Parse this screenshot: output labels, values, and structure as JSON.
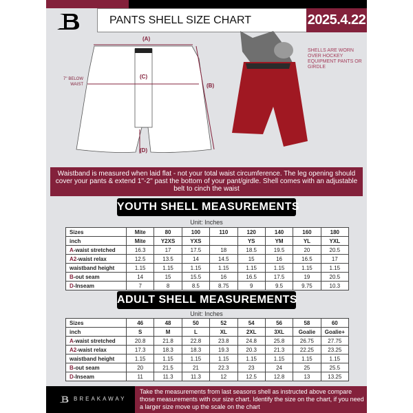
{
  "header": {
    "title": "PANTS SHELL SIZE CHART",
    "date": "2025.4.22"
  },
  "diagram": {
    "labels": {
      "a": "(A)",
      "b": "(B)",
      "c": "(C)",
      "d": "(D)",
      "c_note": "7'' BELOW WAIST"
    },
    "note": "SHELLS ARE WORN OVER HOCKEY EQUIPMENT PANTS OR GIRDLE"
  },
  "info_band": "Waistband is measured when laid flat - not your total waist circumference. The leg opening should cover your pants & extend 1''-2'' past the bottom of your pant/girdle. Shell comes with an adjustable belt to cinch the waist",
  "colors": {
    "accent": "#83213b",
    "dark": "#000000",
    "background": "#e1e2e5"
  },
  "youth": {
    "title": "YOUTH SHELL MEASUREMENTS",
    "unit": "Unit: Inches",
    "rows": [
      {
        "label": "Sizes",
        "values": [
          "Mite",
          "80",
          "100",
          "110",
          "120",
          "140",
          "160",
          "180"
        ]
      },
      {
        "label": "inch",
        "values": [
          "Mite",
          "Y2XS",
          "YXS",
          "",
          "YS",
          "YM",
          "YL",
          "YXL"
        ]
      },
      {
        "prefix": "A",
        "label": "-waist stretched",
        "values": [
          "16.3",
          "17",
          "17.5",
          "18",
          "18.5",
          "19.5",
          "20",
          "20.5"
        ]
      },
      {
        "prefix": "A2",
        "label": "-waist relax",
        "values": [
          "12.5",
          "13.5",
          "14",
          "14.5",
          "15",
          "16",
          "16.5",
          "17"
        ]
      },
      {
        "label": "waistband height",
        "values": [
          "1.15",
          "1.15",
          "1.15",
          "1.15",
          "1.15",
          "1.15",
          "1.15",
          "1.15"
        ]
      },
      {
        "prefix": "B",
        "label": "-out seam",
        "values": [
          "14",
          "15",
          "15.5",
          "16",
          "16.5",
          "17.5",
          "19",
          "20.5"
        ]
      },
      {
        "prefix": "D",
        "label": "-Inseam",
        "values": [
          "7",
          "8",
          "8.5",
          "8.75",
          "9",
          "9.5",
          "9.75",
          "10.3"
        ]
      }
    ]
  },
  "adult": {
    "title": "ADULT SHELL MEASUREMENTS",
    "unit": "Unit: Inches",
    "rows": [
      {
        "label": "Sizes",
        "values": [
          "46",
          "48",
          "50",
          "52",
          "54",
          "56",
          "58",
          "60"
        ]
      },
      {
        "label": "inch",
        "values": [
          "S",
          "M",
          "L",
          "XL",
          "2XL",
          "3XL",
          "Goalie",
          "Goalie+"
        ]
      },
      {
        "prefix": "A",
        "label": "-waist stretched",
        "values": [
          "20.8",
          "21.8",
          "22.8",
          "23.8",
          "24.8",
          "25.8",
          "26.75",
          "27.75"
        ]
      },
      {
        "prefix": "A2",
        "label": "-waist relax",
        "values": [
          "17.3",
          "18.3",
          "18.3",
          "19.3",
          "20.3",
          "21.3",
          "22.25",
          "23.25"
        ]
      },
      {
        "label": "waistband height",
        "values": [
          "1.15",
          "1.15",
          "1.15",
          "1.15",
          "1.15",
          "1.15",
          "1.15",
          "1.15"
        ]
      },
      {
        "prefix": "B",
        "label": "-out seam",
        "values": [
          "20",
          "21.5",
          "21",
          "22.3",
          "23",
          "24",
          "25",
          "25.5"
        ]
      },
      {
        "prefix": "D",
        "label": "-Inseam",
        "values": [
          "11",
          "11.3",
          "11.3",
          "12",
          "12.5",
          "12.8",
          "13",
          "13.25"
        ]
      }
    ]
  },
  "footer": {
    "brand": "BREAKAWAY",
    "text": "Take the measurements from last seasons shell as instructed above compare those measurements  with our size chart. Identify the size on the chart, if you need a larger size move up the scale on the chart"
  }
}
